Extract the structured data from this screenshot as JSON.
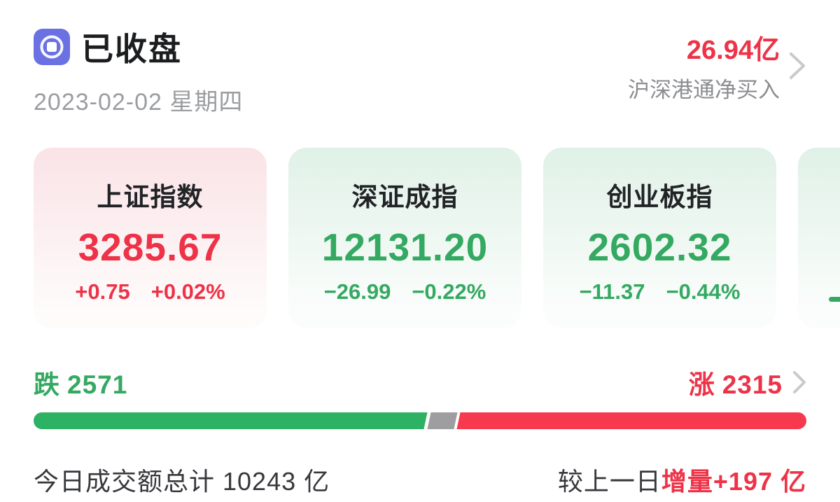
{
  "header": {
    "status": "已收盘",
    "date": "2023-02-02 星期四",
    "net_buy": {
      "value": "26.94亿",
      "label": "沪深港通净买入"
    }
  },
  "indices": [
    {
      "name": "上证指数",
      "value": "3285.67",
      "change": "+0.75",
      "change_pct": "+0.02%",
      "direction": "up"
    },
    {
      "name": "深证成指",
      "value": "12131.20",
      "change": "−26.99",
      "change_pct": "−0.22%",
      "direction": "down"
    },
    {
      "name": "创业板指",
      "value": "2602.32",
      "change": "−11.37",
      "change_pct": "−0.44%",
      "direction": "down"
    },
    {
      "name": "",
      "value": "",
      "change": "−",
      "change_pct": "",
      "direction": "down",
      "clipped": true
    }
  ],
  "breadth": {
    "down_label": "跌",
    "down_count": "2571",
    "up_label": "涨",
    "up_count": "2315",
    "bar": {
      "green_pct": 50.7,
      "gray_pct": 3.4,
      "red_pct": 45.9
    }
  },
  "footer": {
    "turnover": "今日成交额总计 10243 亿",
    "compare_prefix": "较上一日",
    "compare_delta": "增量+197 亿"
  },
  "colors": {
    "up_red": "#ee3247",
    "down_green": "#34a961",
    "bar_green": "#2db163",
    "bar_gray": "#9e9ea1",
    "bar_red": "#f6394e",
    "icon_purple": "#6b70e3",
    "muted_gray": "#9b9da1",
    "chevron_gray": "#c9cacc",
    "dark_text": "#222326"
  }
}
